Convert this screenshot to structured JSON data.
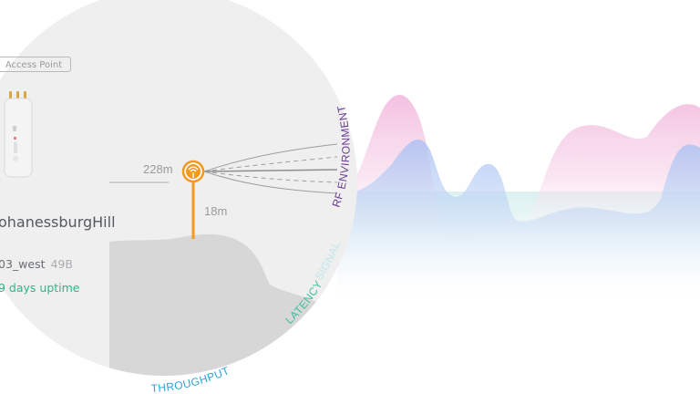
{
  "device": {
    "type_badge": "Access Point",
    "site_name": "ohanessburgHill",
    "ssid": "03_west",
    "ssid_size": "49B",
    "uptime": "9 days uptime"
  },
  "link": {
    "distance": "228m",
    "height": "18m"
  },
  "metrics": {
    "rf_environment": "RF ENVIRONMENT",
    "signal": "SIGNAL",
    "latency": "LATENCY",
    "throughput": "THROUGHPUT"
  },
  "colors": {
    "accent_orange": "#f39a1e",
    "rf_purple": "#6b3d8f",
    "signal_teal": "#bfe7ea",
    "latency_green": "#3fbf9c",
    "throughput_blue": "#2aa2d8",
    "wave_pink": "#f5c2e0",
    "wave_blue": "#b9cdf3",
    "wave_teal": "#dff2f1"
  },
  "icons": {
    "antenna": "antenna-signal-icon",
    "device": "access-point-device-icon"
  }
}
